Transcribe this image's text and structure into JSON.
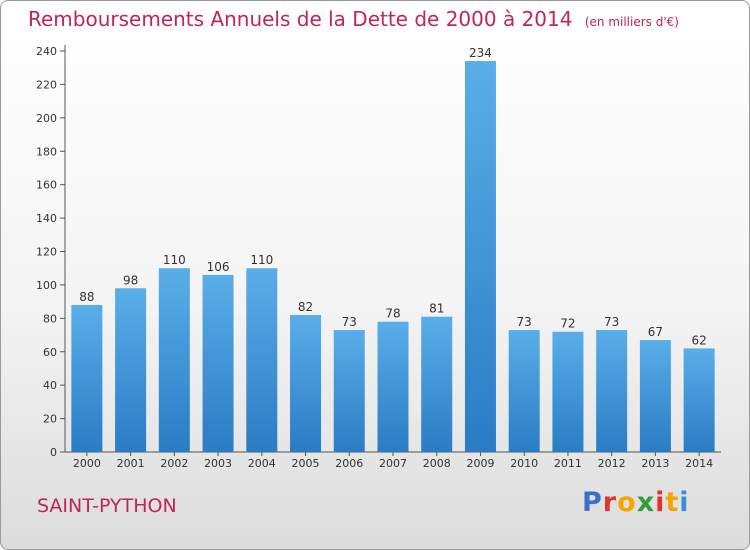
{
  "chart_data": {
    "type": "bar",
    "title": "Remboursements Annuels de la Dette de 2000 à 2014",
    "unit": "(en milliers d'€)",
    "categories": [
      "2000",
      "2001",
      "2002",
      "2003",
      "2004",
      "2005",
      "2006",
      "2007",
      "2008",
      "2009",
      "2010",
      "2011",
      "2012",
      "2013",
      "2014"
    ],
    "values": [
      88,
      98,
      110,
      106,
      110,
      82,
      73,
      78,
      81,
      234,
      73,
      72,
      73,
      67,
      62
    ],
    "ylim": [
      0,
      240
    ],
    "yticks": [
      0,
      20,
      40,
      60,
      80,
      100,
      120,
      140,
      160,
      180,
      200,
      220,
      240
    ],
    "bar_color": "#3a8fd6",
    "grid": false
  },
  "footer": {
    "town": "SAINT-PYTHON",
    "logo_letters": [
      "P",
      "r",
      "o",
      "x",
      "i",
      "t",
      "i"
    ],
    "logo_colors": [
      "#3b6fc9",
      "#e8312a",
      "#f6a500",
      "#2f9e3c",
      "#e8312a",
      "#f6a500",
      "#3b8ed6"
    ]
  }
}
